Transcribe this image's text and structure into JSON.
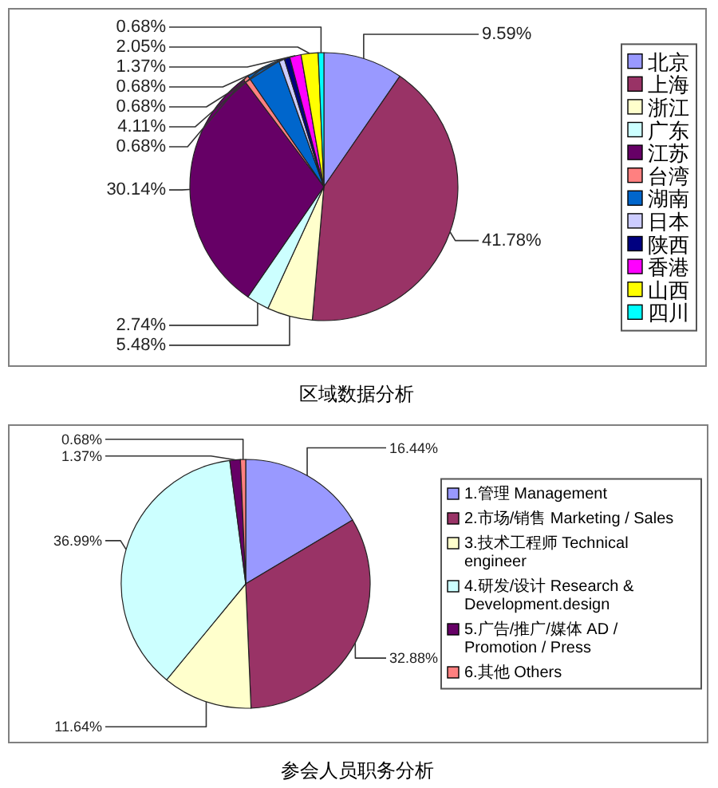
{
  "chart_data": [
    {
      "type": "pie",
      "title": "区域数据分析",
      "categories": [
        "北京",
        "上海",
        "浙江",
        "广东",
        "江苏",
        "台湾",
        "湖南",
        "日本",
        "陕西",
        "香港",
        "山西",
        "四川"
      ],
      "values": [
        9.59,
        41.78,
        5.48,
        2.74,
        30.14,
        0.68,
        4.11,
        0.68,
        0.68,
        1.37,
        2.05,
        0.68
      ],
      "colors": [
        "#9999ff",
        "#993366",
        "#ffffcc",
        "#ccffff",
        "#660066",
        "#ff8080",
        "#0066cc",
        "#ccccff",
        "#000080",
        "#ff00ff",
        "#ffff00",
        "#00ffff"
      ],
      "value_labels": [
        "9.59%",
        "41.78%",
        "5.48%",
        "2.74%",
        "30.14%",
        "0.68%",
        "4.11%",
        "0.68%",
        "0.68%",
        "1.37%",
        "2.05%",
        "0.68%"
      ],
      "legend": "right"
    },
    {
      "type": "pie",
      "title": "参会人员职务分析",
      "categories": [
        "1.管理 Management",
        "2.市场/销售 Marketing / Sales",
        "3.技术工程师 Technical engineer",
        "4.研发/设计 Research & Development.design",
        "5.广告/推广/媒体 AD / Promotion / Press",
        "6.其他 Others"
      ],
      "values": [
        16.44,
        32.88,
        11.64,
        36.99,
        1.37,
        0.68
      ],
      "colors": [
        "#9999ff",
        "#993366",
        "#ffffcc",
        "#ccffff",
        "#660066",
        "#ff8080"
      ],
      "value_labels": [
        "16.44%",
        "32.88%",
        "11.64%",
        "36.99%",
        "1.37%",
        "0.68%"
      ],
      "legend": "right"
    }
  ]
}
